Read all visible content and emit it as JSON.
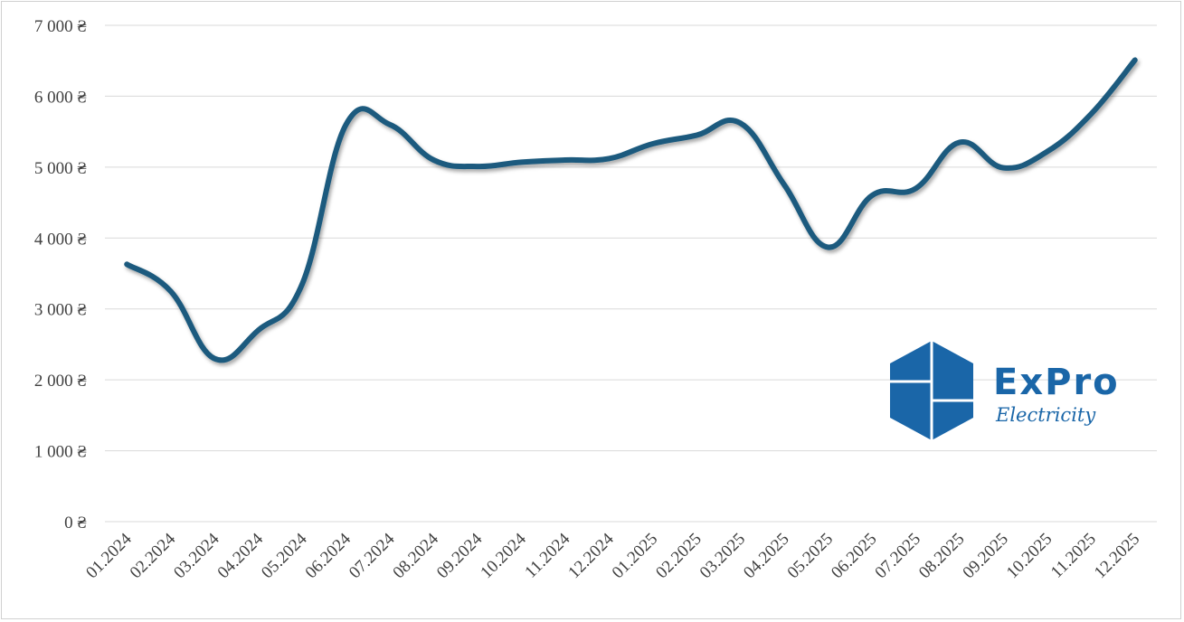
{
  "chart_data": {
    "type": "line",
    "categories": [
      "01.2024",
      "02.2024",
      "03.2024",
      "04.2024",
      "05.2024",
      "06.2024",
      "07.2024",
      "08.2024",
      "09.2024",
      "10.2024",
      "11.2024",
      "12.2024",
      "01.2025",
      "02.2025",
      "03.2025",
      "04.2025",
      "05.2025",
      "06.2025",
      "07.2025",
      "08.2025",
      "09.2025",
      "10.2025",
      "11.2025",
      "12.2025"
    ],
    "series": [
      {
        "values": [
          3630,
          3250,
          2300,
          2700,
          3350,
          5600,
          5600,
          5100,
          5010,
          5070,
          5100,
          5120,
          5330,
          5450,
          5620,
          4750,
          3870,
          4600,
          4700,
          5350,
          4990,
          5220,
          5750,
          6510
        ],
        "color": "#1a5a7e"
      }
    ],
    "ylim": [
      0,
      7000
    ],
    "yticks": [
      0,
      1000,
      2000,
      3000,
      4000,
      5000,
      6000,
      7000
    ],
    "ytick_labels": [
      "0 ₴",
      "1 000 ₴",
      "2 000 ₴",
      "3 000 ₴",
      "4 000 ₴",
      "5 000 ₴",
      "6 000 ₴",
      "7 000 ₴"
    ],
    "grid": true,
    "legend": "none",
    "title": "",
    "xlabel": "",
    "ylabel": ""
  },
  "logo": {
    "name": "ExPro",
    "tagline": "Electricity",
    "color": "#1a66a8"
  },
  "colors": {
    "grid": "#d9d9d9",
    "line": "#1a5a7e",
    "text": "#404040"
  }
}
